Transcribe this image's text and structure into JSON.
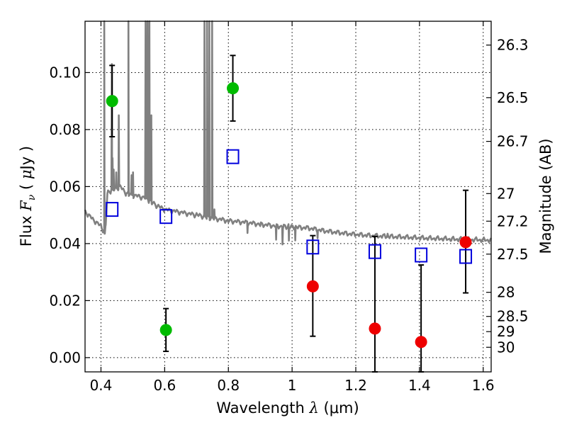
{
  "chart_data": {
    "type": "scatter",
    "title": "",
    "xlabel": "Wavelength  λ (μm)",
    "xlabel_parts": {
      "prefix": "Wavelength  ",
      "symbol": "λ",
      "suffix": " (μm)"
    },
    "ylabel": "Flux  Fν  ( μJy )",
    "ylabel_parts": {
      "prefix": "Flux  ",
      "symbol": "F",
      "sub": "ν",
      "suffix": "  ( ",
      "mu": "μ",
      "unit": "Jy )"
    },
    "y2label": "Magnitude (AB)",
    "xlim": [
      0.35,
      1.625
    ],
    "ylim": [
      -0.005,
      0.118
    ],
    "grid": true,
    "x_ticks": [
      {
        "v": 0.4,
        "label": "0.4"
      },
      {
        "v": 0.6,
        "label": "0.6"
      },
      {
        "v": 0.8,
        "label": "0.8"
      },
      {
        "v": 1.0,
        "label": "1"
      },
      {
        "v": 1.2,
        "label": "1.2"
      },
      {
        "v": 1.4,
        "label": "1.4"
      },
      {
        "v": 1.6,
        "label": "1.6"
      }
    ],
    "y_ticks": [
      {
        "v": 0.0,
        "label": "0.00"
      },
      {
        "v": 0.02,
        "label": "0.02"
      },
      {
        "v": 0.04,
        "label": "0.04"
      },
      {
        "v": 0.06,
        "label": "0.06"
      },
      {
        "v": 0.08,
        "label": "0.08"
      },
      {
        "v": 0.1,
        "label": "0.10"
      }
    ],
    "mag_ticks": [
      {
        "mag": 26.3,
        "label": "26.3"
      },
      {
        "mag": 26.5,
        "label": "26.5"
      },
      {
        "mag": 26.7,
        "label": "26.7"
      },
      {
        "mag": 27,
        "label": "27"
      },
      {
        "mag": 27.2,
        "label": "27.2"
      },
      {
        "mag": 27.5,
        "label": "27.5"
      },
      {
        "mag": 28,
        "label": "28"
      },
      {
        "mag": 28.5,
        "label": "28.5"
      },
      {
        "mag": 29,
        "label": "29"
      },
      {
        "mag": 30,
        "label": "30"
      }
    ],
    "series": [
      {
        "marker": "circle",
        "color": "#00bb00",
        "points": [
          {
            "x": 0.435,
            "y": 0.09,
            "err_lo": 0.0775,
            "err_hi": 0.1025
          },
          {
            "x": 0.604,
            "y": 0.0097,
            "err_lo": 0.0022,
            "err_hi": 0.0172
          },
          {
            "x": 0.814,
            "y": 0.0945,
            "err_lo": 0.083,
            "err_hi": 0.106
          }
        ]
      },
      {
        "marker": "circle",
        "color": "#ee0000",
        "points": [
          {
            "x": 1.065,
            "y": 0.025,
            "err_lo": 0.0075,
            "err_hi": 0.0428
          },
          {
            "x": 1.26,
            "y": 0.0102,
            "err_lo": -0.005,
            "err_hi": 0.0425
          },
          {
            "x": 1.405,
            "y": 0.0055,
            "err_lo": -0.005,
            "err_hi": 0.0325
          },
          {
            "x": 1.545,
            "y": 0.0405,
            "err_lo": 0.0227,
            "err_hi": 0.0587
          }
        ]
      },
      {
        "marker": "square-open",
        "color": "#0000dd",
        "points": [
          {
            "x": 0.435,
            "y": 0.052
          },
          {
            "x": 0.604,
            "y": 0.0495
          },
          {
            "x": 0.814,
            "y": 0.0705
          },
          {
            "x": 1.065,
            "y": 0.0388
          },
          {
            "x": 1.26,
            "y": 0.0372
          },
          {
            "x": 1.405,
            "y": 0.036
          },
          {
            "x": 1.545,
            "y": 0.0355
          }
        ]
      }
    ],
    "model_spectrum": {
      "color": "#808080",
      "continuum": [
        [
          0.35,
          0.0513
        ],
        [
          0.37,
          0.049
        ],
        [
          0.4,
          0.046
        ],
        [
          0.408,
          0.0445
        ],
        [
          0.412,
          0.043
        ],
        [
          0.415,
          0.047
        ],
        [
          0.42,
          0.058
        ],
        [
          0.44,
          0.059
        ],
        [
          0.46,
          0.06
        ],
        [
          0.48,
          0.0575
        ],
        [
          0.5,
          0.057
        ],
        [
          0.52,
          0.0565
        ],
        [
          0.54,
          0.056
        ],
        [
          0.56,
          0.0545
        ],
        [
          0.58,
          0.053
        ],
        [
          0.6,
          0.052
        ],
        [
          0.65,
          0.051
        ],
        [
          0.7,
          0.05
        ],
        [
          0.75,
          0.049
        ],
        [
          0.8,
          0.048
        ],
        [
          0.85,
          0.0475
        ],
        [
          0.9,
          0.0468
        ],
        [
          0.95,
          0.0462
        ],
        [
          1.0,
          0.0458
        ],
        [
          1.05,
          0.0455
        ],
        [
          1.1,
          0.0445
        ],
        [
          1.15,
          0.0438
        ],
        [
          1.2,
          0.0432
        ],
        [
          1.25,
          0.0428
        ],
        [
          1.3,
          0.0425
        ],
        [
          1.35,
          0.0423
        ],
        [
          1.4,
          0.042
        ],
        [
          1.45,
          0.0418
        ],
        [
          1.5,
          0.0416
        ],
        [
          1.55,
          0.0414
        ],
        [
          1.6,
          0.0413
        ],
        [
          1.625,
          0.0412
        ]
      ],
      "emission_lines": [
        {
          "x": 0.4102,
          "peak": 0.118
        },
        {
          "x": 0.434,
          "peak": 0.103
        },
        {
          "x": 0.4363,
          "peak": 0.07
        },
        {
          "x": 0.44,
          "peak": 0.066
        },
        {
          "x": 0.448,
          "peak": 0.065
        },
        {
          "x": 0.456,
          "peak": 0.085
        },
        {
          "x": 0.4861,
          "peak": 0.118
        },
        {
          "x": 0.4959,
          "peak": 0.064
        },
        {
          "x": 0.5007,
          "peak": 0.065
        },
        {
          "x": 0.54,
          "peak": 0.118
        },
        {
          "x": 0.546,
          "peak": 0.118
        },
        {
          "x": 0.552,
          "peak": 0.118
        },
        {
          "x": 0.558,
          "peak": 0.085
        },
        {
          "x": 0.725,
          "peak": 0.118
        },
        {
          "x": 0.733,
          "peak": 0.118
        },
        {
          "x": 0.74,
          "peak": 0.118
        },
        {
          "x": 0.749,
          "peak": 0.118
        },
        {
          "x": 0.756,
          "peak": 0.052
        }
      ],
      "absorption_features": [
        {
          "x": 0.86,
          "depth": 0.0035
        },
        {
          "x": 0.95,
          "depth": 0.0055
        },
        {
          "x": 0.97,
          "depth": 0.006
        },
        {
          "x": 0.99,
          "depth": 0.005
        },
        {
          "x": 1.01,
          "depth": 0.0045
        },
        {
          "x": 1.08,
          "depth": 0.003
        }
      ]
    }
  }
}
